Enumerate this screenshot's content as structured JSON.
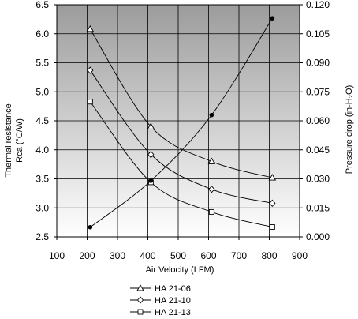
{
  "chart_data": {
    "type": "line",
    "xlabel": "Air Velocity (LFM)",
    "ylabel_left_line1": "Thermal resistance",
    "ylabel_left_line2": "Rca (°C/W)",
    "ylabel_right": "Pressure drop (in-H₂O)",
    "xlim": [
      100,
      900
    ],
    "ylim_left": [
      2.5,
      6.5
    ],
    "ylim_right": [
      0.0,
      0.12
    ],
    "x_ticks": [
      "100",
      "200",
      "300",
      "400",
      "500",
      "600",
      "700",
      "800",
      "900"
    ],
    "y_left_ticks": [
      "2.5",
      "3.0",
      "3.5",
      "4.0",
      "4.5",
      "5.0",
      "5.5",
      "6.0",
      "6.5"
    ],
    "y_right_ticks": [
      "0.000",
      "0.015",
      "0.030",
      "0.045",
      "0.060",
      "0.075",
      "0.090",
      "0.105",
      "0.120"
    ],
    "grid": true,
    "legend_position": "bottom-center",
    "series": [
      {
        "name": "HA 21-06",
        "axis": "left",
        "marker": "triangle",
        "x": [
          210,
          410,
          610,
          810
        ],
        "y": [
          6.08,
          4.4,
          3.8,
          3.52
        ]
      },
      {
        "name": "HA 21-10",
        "axis": "left",
        "marker": "diamond",
        "x": [
          210,
          410,
          610,
          810
        ],
        "y": [
          5.37,
          3.92,
          3.32,
          3.08
        ]
      },
      {
        "name": "HA 21-13",
        "axis": "left",
        "marker": "square",
        "x": [
          210,
          410,
          610,
          810
        ],
        "y": [
          4.83,
          3.44,
          2.93,
          2.67
        ]
      },
      {
        "axis": "right",
        "marker": "filled-circle",
        "x": [
          210,
          410,
          610,
          810
        ],
        "y": [
          0.005,
          0.029,
          0.063,
          0.113
        ]
      }
    ]
  }
}
